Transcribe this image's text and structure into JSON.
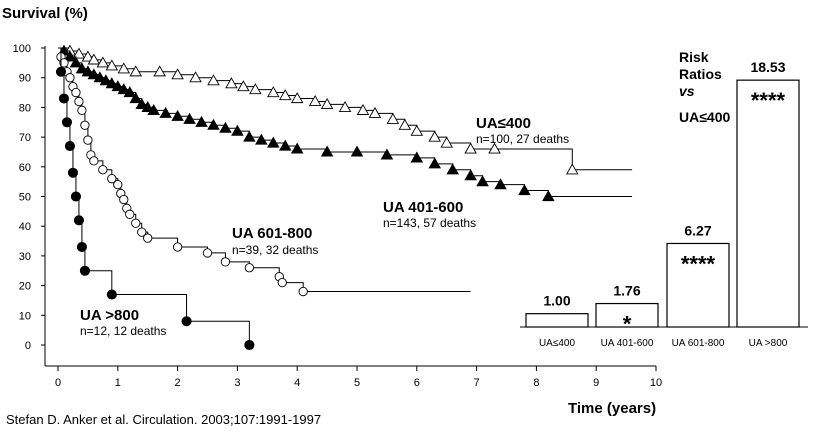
{
  "chart_data": [
    {
      "type": "line",
      "subtype": "kaplan-meier",
      "ylabel": "Survival (%)",
      "xlabel": "Time (years)",
      "xlim": [
        0,
        10
      ],
      "ylim": [
        0,
        100
      ],
      "xticks": [
        "0",
        "1",
        "2",
        "3",
        "4",
        "5",
        "6",
        "7",
        "8",
        "9",
        "10"
      ],
      "yticks": [
        "0",
        "10",
        "20",
        "30",
        "40",
        "50",
        "60",
        "70",
        "80",
        "90",
        "100"
      ],
      "grid": false,
      "series": [
        {
          "name": "UA≤400",
          "note": "n=100, 27 deaths",
          "marker": "open-triangle",
          "end_x": 9.6,
          "points": [
            [
              0,
              100
            ],
            [
              0.2,
              99
            ],
            [
              0.35,
              98
            ],
            [
              0.5,
              97
            ],
            [
              0.6,
              96
            ],
            [
              0.75,
              95
            ],
            [
              0.9,
              94
            ],
            [
              1.1,
              93
            ],
            [
              1.3,
              92
            ],
            [
              1.7,
              92
            ],
            [
              2.0,
              91
            ],
            [
              2.3,
              90
            ],
            [
              2.6,
              89
            ],
            [
              2.9,
              88
            ],
            [
              3.1,
              87
            ],
            [
              3.3,
              86
            ],
            [
              3.6,
              85
            ],
            [
              3.8,
              84
            ],
            [
              4.0,
              83
            ],
            [
              4.3,
              82
            ],
            [
              4.5,
              81
            ],
            [
              4.8,
              80
            ],
            [
              5.1,
              79
            ],
            [
              5.3,
              78
            ],
            [
              5.6,
              76
            ],
            [
              5.8,
              74
            ],
            [
              6.0,
              72
            ],
            [
              6.3,
              70
            ],
            [
              6.5,
              68
            ],
            [
              6.9,
              66
            ],
            [
              7.3,
              66
            ],
            [
              8.6,
              59
            ]
          ]
        },
        {
          "name": "UA 401-600",
          "note": "n=143, 57 deaths",
          "marker": "filled-triangle",
          "end_x": 9.6,
          "points": [
            [
              0,
              100
            ],
            [
              0.1,
              99
            ],
            [
              0.2,
              97
            ],
            [
              0.3,
              95
            ],
            [
              0.4,
              93
            ],
            [
              0.5,
              92
            ],
            [
              0.6,
              91
            ],
            [
              0.7,
              90
            ],
            [
              0.8,
              89
            ],
            [
              0.9,
              88
            ],
            [
              1.0,
              87
            ],
            [
              1.1,
              86
            ],
            [
              1.2,
              85
            ],
            [
              1.3,
              83
            ],
            [
              1.4,
              81
            ],
            [
              1.5,
              80
            ],
            [
              1.6,
              79
            ],
            [
              1.8,
              78
            ],
            [
              2.0,
              77
            ],
            [
              2.2,
              76
            ],
            [
              2.4,
              75
            ],
            [
              2.6,
              74
            ],
            [
              2.8,
              73
            ],
            [
              3.0,
              72
            ],
            [
              3.2,
              70
            ],
            [
              3.4,
              69
            ],
            [
              3.6,
              68
            ],
            [
              3.8,
              67
            ],
            [
              4.0,
              66
            ],
            [
              4.5,
              65
            ],
            [
              5.0,
              65
            ],
            [
              5.5,
              64
            ],
            [
              6.0,
              63
            ],
            [
              6.3,
              61
            ],
            [
              6.6,
              59
            ],
            [
              6.9,
              57
            ],
            [
              7.1,
              55
            ],
            [
              7.4,
              54
            ],
            [
              7.8,
              52
            ],
            [
              8.2,
              50
            ]
          ]
        },
        {
          "name": "UA 601-800",
          "note": "n=39, 32 deaths",
          "marker": "open-circle",
          "end_x": 6.9,
          "points": [
            [
              0,
              100
            ],
            [
              0.05,
              97
            ],
            [
              0.1,
              95
            ],
            [
              0.15,
              92
            ],
            [
              0.2,
              90
            ],
            [
              0.25,
              87
            ],
            [
              0.3,
              85
            ],
            [
              0.35,
              82
            ],
            [
              0.4,
              79
            ],
            [
              0.45,
              74
            ],
            [
              0.5,
              69
            ],
            [
              0.55,
              64
            ],
            [
              0.6,
              62
            ],
            [
              0.75,
              59
            ],
            [
              0.9,
              56
            ],
            [
              1.0,
              54
            ],
            [
              1.05,
              51
            ],
            [
              1.1,
              49
            ],
            [
              1.15,
              46
            ],
            [
              1.2,
              44
            ],
            [
              1.3,
              41
            ],
            [
              1.4,
              38
            ],
            [
              1.5,
              36
            ],
            [
              2.0,
              33
            ],
            [
              2.5,
              31
            ],
            [
              2.8,
              28
            ],
            [
              3.2,
              26
            ],
            [
              3.7,
              23
            ],
            [
              3.75,
              21
            ],
            [
              4.1,
              18
            ]
          ]
        },
        {
          "name": "UA >800",
          "note": "n=12, 12 deaths",
          "marker": "filled-circle",
          "end_x": 3.2,
          "points": [
            [
              0,
              100
            ],
            [
              0.05,
              92
            ],
            [
              0.1,
              83
            ],
            [
              0.15,
              75
            ],
            [
              0.2,
              67
            ],
            [
              0.25,
              58
            ],
            [
              0.3,
              50
            ],
            [
              0.35,
              42
            ],
            [
              0.4,
              33
            ],
            [
              0.45,
              25
            ],
            [
              0.9,
              17
            ],
            [
              2.15,
              8
            ],
            [
              3.2,
              0
            ]
          ]
        }
      ]
    },
    {
      "type": "bar",
      "title": [
        "Risk",
        "Ratios",
        "vs",
        "UA≤400"
      ],
      "categories": [
        "UA≤400",
        "UA 401-600",
        "UA 601-800",
        "UA >800"
      ],
      "values": [
        1.0,
        1.76,
        6.27,
        18.53
      ],
      "value_labels": [
        "1.00",
        "1.76",
        "6.27",
        "18.53"
      ],
      "significance": [
        "",
        "*",
        "****",
        "****"
      ],
      "ylim": [
        0,
        20
      ]
    }
  ],
  "citation": "Stefan D. Anker et al. Circulation. 2003;107:1991-1997"
}
